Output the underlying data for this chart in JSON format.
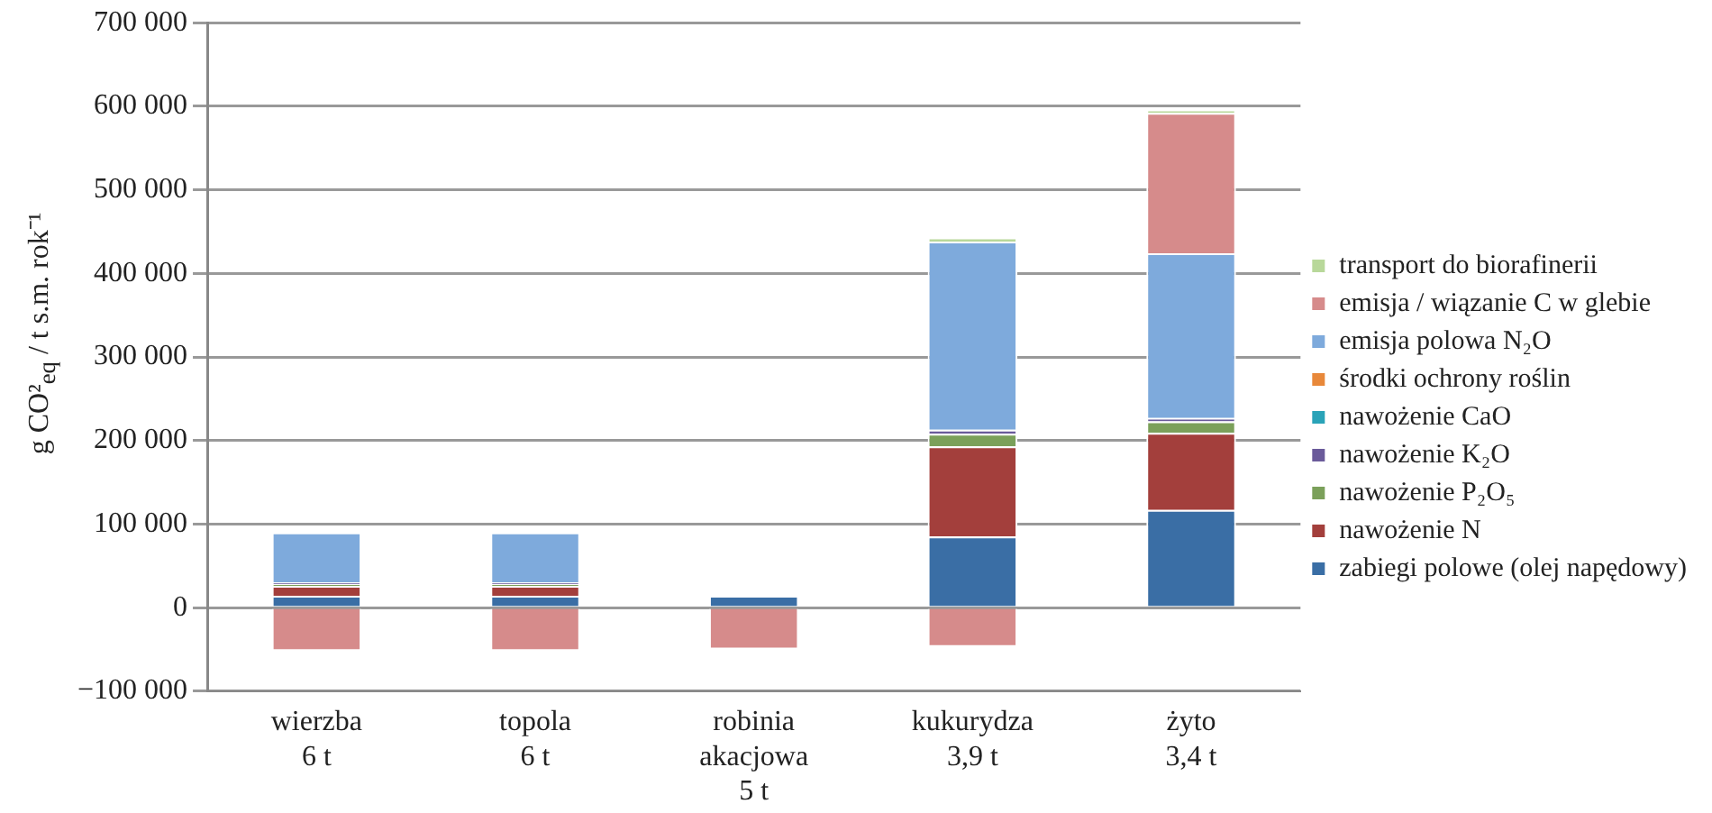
{
  "chart_data": {
    "type": "bar",
    "stacked": true,
    "ylabel": "g CO²$_{eq}$ / t s.m. rok⁻¹",
    "categories": [
      "wierzba\n6 t",
      "topola\n6 t",
      "robinia\nakacjowa\n5 t",
      "kukurydza\n3,9 t",
      "żyto\n3,4 t"
    ],
    "series": [
      {
        "name": "zabiegi polowe (olej napędowy)",
        "color": "#3a6ea5",
        "values": [
          14000,
          14000,
          14000,
          85000,
          117000
        ]
      },
      {
        "name": "nawożenie N",
        "color": "#a33f3c",
        "values": [
          12000,
          12000,
          0,
          108000,
          92000
        ]
      },
      {
        "name": "nawożenie P₂O₅",
        "color": "#7ba05a",
        "values": [
          2000,
          2000,
          0,
          15000,
          14000
        ]
      },
      {
        "name": "nawożenie K₂O",
        "color": "#6a5a9a",
        "values": [
          2000,
          2000,
          0,
          5000,
          4000
        ]
      },
      {
        "name": "nawożenie CaO",
        "color": "#2aa3b8",
        "values": [
          null,
          null,
          null,
          null,
          null
        ]
      },
      {
        "name": "środki ochrony roślin",
        "color": "#e8883a",
        "values": [
          null,
          null,
          null,
          null,
          null
        ]
      },
      {
        "name": "emisja polowa N₂O",
        "color": "#7eaadc",
        "values": [
          60000,
          60000,
          0,
          225000,
          197000
        ]
      },
      {
        "name": "emisja / wiązanie C w glebie",
        "color": "#d68b8b",
        "values": [
          -52000,
          -52000,
          -50000,
          -47000,
          168000
        ]
      },
      {
        "name": "transport do biorafinerii",
        "color": "#b8d89a",
        "values": [
          null,
          null,
          null,
          5000,
          4000
        ]
      }
    ],
    "ylim": [
      -100000,
      700000
    ],
    "yticks": [
      {
        "value": -100000,
        "label": "−100 000"
      },
      {
        "value": 0,
        "label": "0"
      },
      {
        "value": 100000,
        "label": "100 000"
      },
      {
        "value": 200000,
        "label": "200 000"
      },
      {
        "value": 300000,
        "label": "300 000"
      },
      {
        "value": 400000,
        "label": "400 000"
      },
      {
        "value": 500000,
        "label": "500 000"
      },
      {
        "value": 600000,
        "label": "600 000"
      },
      {
        "value": 700000,
        "label": "700 000"
      }
    ],
    "grid": "y",
    "legend": "right"
  }
}
